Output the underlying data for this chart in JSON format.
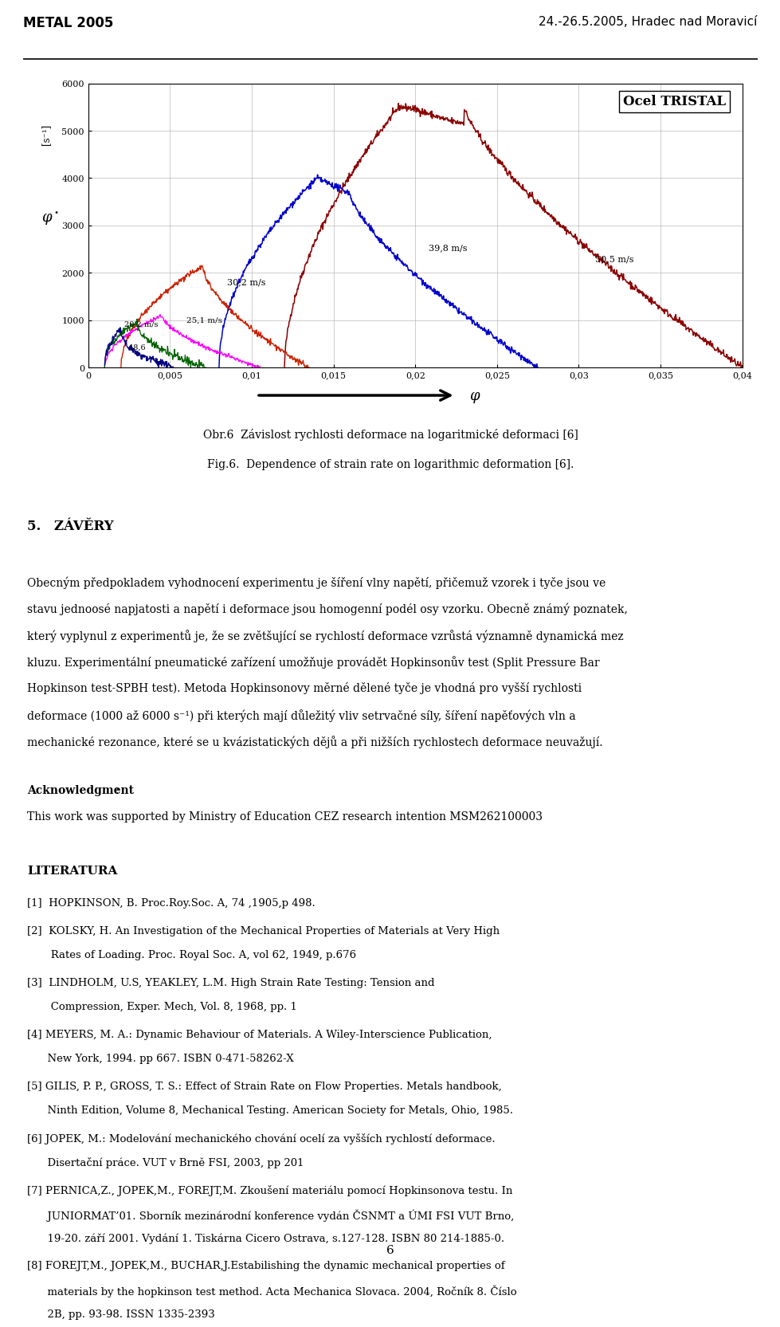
{
  "header_left": "METAL 2005",
  "header_right": "24.-26.5.2005, Hradec nad Moravicí",
  "chart_title": "Ocel TRISTAL",
  "fig_caption_cz": "Obr.6  Závislost rychlosti deformace na logaritmické deformaci [6]",
  "fig_caption_en": "Fig.6.  Dependence of strain rate on logarithmic deformation [6].",
  "section_title": "5. ZÁVĚRY",
  "paragraph1": "Obecným předpokladem vyhodnocení experimentu je šíření vlny napětí, přičemuž vzorek i tyče jsou ve stavu jednoosé napjatosti a napětí i deformace jsou homogenní podél osy vzorku. Obecně známý poznatek, který vyplynul z experimentů je, že se zvětšující se rychlostí deformace vzrůstá významně dynamická mez kluzu. Experimentální pneumatické zařízení umožňuje provádět Hopkinsonův test (Split Pressure Bar Hopkinson test-SPBH test). Metoda Hopkinsonovy měrné dělené tyče je vhodná pro vyšší rychlosti deformace (1000 až 6000 s⁻¹) při kterých mají důležitý vliv setrvačné síly, šíření napěťových vln a mechanické rezonance, které se u kvázistatických dějů a při nižších rychlostech deformace neuvažují.",
  "acknowledgment_label": "Acknowledgment",
  "acknowledgment_text": "This work was supported by Ministry of Education CEZ research intention MSM262100003",
  "literatura_title": "LITERATURA",
  "references": [
    "[1]  HOPKINSON, B. Proc.Roy.Soc. A, 74 ,1905,p 498.",
    "[2]  KOLSKY, H. An Investigation of the Mechanical Properties of Materials at Very High\n       Rates of Loading. Proc. Royal Soc. A, vol 62, 1949, p.676",
    "[3]  LINDHOLM, U.S, YEAKLEY, L.M. High Strain Rate Testing: Tension and\n       Compression, Exper. Mech, Vol. 8, 1968, pp. 1",
    "[4] MEYERS, M. A.: Dynamic Behaviour of Materials. A Wiley-Interscience Publication,\n      New York, 1994. pp 667. ISBN 0-471-58262-X",
    "[5] GILIS, P. P., GROSS, T. S.: Effect of Strain Rate on Flow Properties. Metals handbook,\n      Ninth Edition, Volume 8, Mechanical Testing. American Society for Metals, Ohio, 1985.",
    "[6] JOPEK, M.: Modelování mechanického chování ocelí za vyšších rychlostí deformace.\n      Disertační práce. VUT v Brně FSI, 2003, pp 201",
    "[7] PERNICA,Z., JOPEK,M., FOREJT,M. Zkoušení materiálu pomocí Hopkinsonova testu. In\n      JUNIORMAT’01. Sborník mezinárodní konference vydán ČSNMT a ÚMI FSI VUT Brno,\n      19-20. září 2001. Vydání 1. Tiskárna Cicero Ostrava, s.127-128. ISBN 80 214-1885-0.",
    "[8] FOREJT,M., JOPEK,M., BUCHAR,J.Estabilishing the dynamic mechanical properties of\n      materials by the hopkinson test method. Acta Mechanica Slovaca. 2004, Ročník 8. Číslo\n      2B, pp. 93-98. ISSN 1335-2393"
  ],
  "page_number": "6"
}
